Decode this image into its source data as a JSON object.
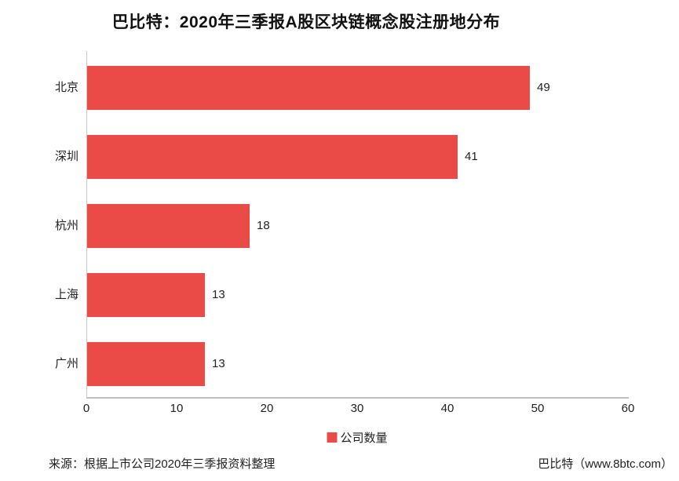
{
  "page": {
    "background": "#ffffff"
  },
  "colors": {
    "bar_red": "#EA4B47",
    "axis_line": "#C9C9C9",
    "axis_baseline": "#BFBFBF",
    "text": "#222222",
    "title_text": "#111111"
  },
  "chart_data": {
    "type": "bar",
    "orientation": "horizontal",
    "title": "巴比特：2020年三季报A股区块链概念股注册地分布",
    "categories": [
      "北京",
      "深圳",
      "杭州",
      "上海",
      "广州"
    ],
    "series": [
      {
        "name": "公司数量",
        "values": [
          49,
          41,
          18,
          13,
          13
        ]
      }
    ],
    "values": [
      49,
      41,
      18,
      13,
      13
    ],
    "xlim": [
      0,
      60
    ],
    "xticks": [
      0,
      10,
      20,
      30,
      40,
      50,
      60
    ],
    "xlabel": "",
    "ylabel": "",
    "grid": false,
    "legend_position": "bottom",
    "value_labels_shown": true
  },
  "legend": {
    "items": [
      {
        "label": "公司数量",
        "color": "#EA4B47"
      }
    ]
  },
  "footer": {
    "source": "来源：根据上市公司2020年三季报资料整理",
    "brand": "巴比特（www.8btc.com）"
  }
}
